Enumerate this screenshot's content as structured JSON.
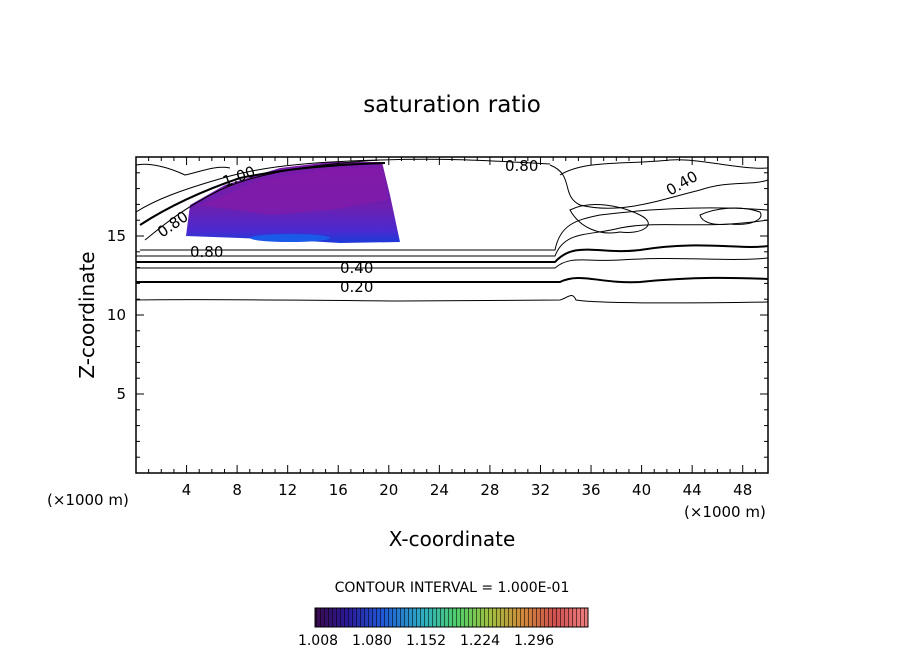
{
  "chart_data": {
    "type": "contour",
    "title": "saturation ratio",
    "xlabel": "X-coordinate",
    "ylabel": "Z-coordinate",
    "x_unit": "(×1000 m)",
    "xlim": [
      0,
      50
    ],
    "ylim": [
      0,
      20
    ],
    "x_ticks": [
      4,
      8,
      12,
      16,
      20,
      24,
      28,
      32,
      36,
      40,
      44,
      48
    ],
    "y_ticks": [
      5,
      10,
      15
    ],
    "contour_interval_text": "CONTOUR INTERVAL = 1.000E-01",
    "contour_labels": [
      "0.80",
      "1.00",
      "0.80",
      "0.40",
      "0.80",
      "0.40",
      "0.20"
    ],
    "filled_region": {
      "description_values": "saturation ratio above 1.0 shaded",
      "x_range": [
        4,
        21
      ],
      "z_range": [
        14.6,
        19.5
      ]
    },
    "colorbar": {
      "ticks": [
        "1.008",
        "1.080",
        "1.152",
        "1.224",
        "1.296"
      ],
      "colors": [
        "#3a0a4a",
        "#2a1a9a",
        "#1f5ad8",
        "#2fb0c0",
        "#4fcf6a",
        "#a0c040",
        "#d08a3a",
        "#d05050",
        "#f08080"
      ]
    }
  }
}
